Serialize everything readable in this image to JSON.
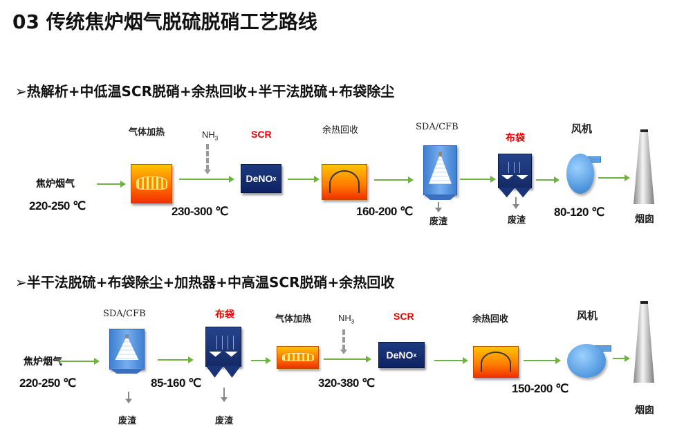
{
  "title": "03  传统焦炉烟气脱硫脱硝工艺路线",
  "route1": {
    "heading": "➢热解析+中低温SCR脱硝+余热回收+半干法脱硫+布袋除尘",
    "source": "焦炉烟气",
    "source_temp": "220-250 ℃",
    "heater": "气体加热",
    "nh3": "NH",
    "nh3_sub": "3",
    "scr": "SCR",
    "denox": "DeNO",
    "denox_sub": "x",
    "temp2": "230-300 ℃",
    "heat_recovery": "余热回收",
    "temp3": "160-200 ℃",
    "sda": "SDA/CFB",
    "waste1": "废渣",
    "bag": "布袋",
    "waste2": "废渣",
    "fan": "风机",
    "temp4": "80-120 ℃",
    "chimney": "烟囱"
  },
  "route2": {
    "heading": "➢半干法脱硫+布袋除尘+加热器+中高温SCR脱硝+余热回收",
    "source": "焦炉烟气",
    "source_temp": "220-250 ℃",
    "sda": "SDA/CFB",
    "waste1": "废渣",
    "temp2": "85-160 ℃",
    "bag": "布袋",
    "waste2": "废渣",
    "heater": "气体加热",
    "nh3": "NH",
    "nh3_sub": "3",
    "scr": "SCR",
    "denox": "DeNO",
    "denox_sub": "x",
    "temp3": "320-380 ℃",
    "heat_recovery": "余热回收",
    "temp4": "150-200 ℃",
    "fan": "风机",
    "chimney": "烟囱"
  },
  "colors": {
    "flow_arrow": "#6eb23f",
    "scr_label": "#ee0000",
    "scr_box": "#142a66",
    "heater": "#ff7a00",
    "tower": "#4f8fdd"
  }
}
